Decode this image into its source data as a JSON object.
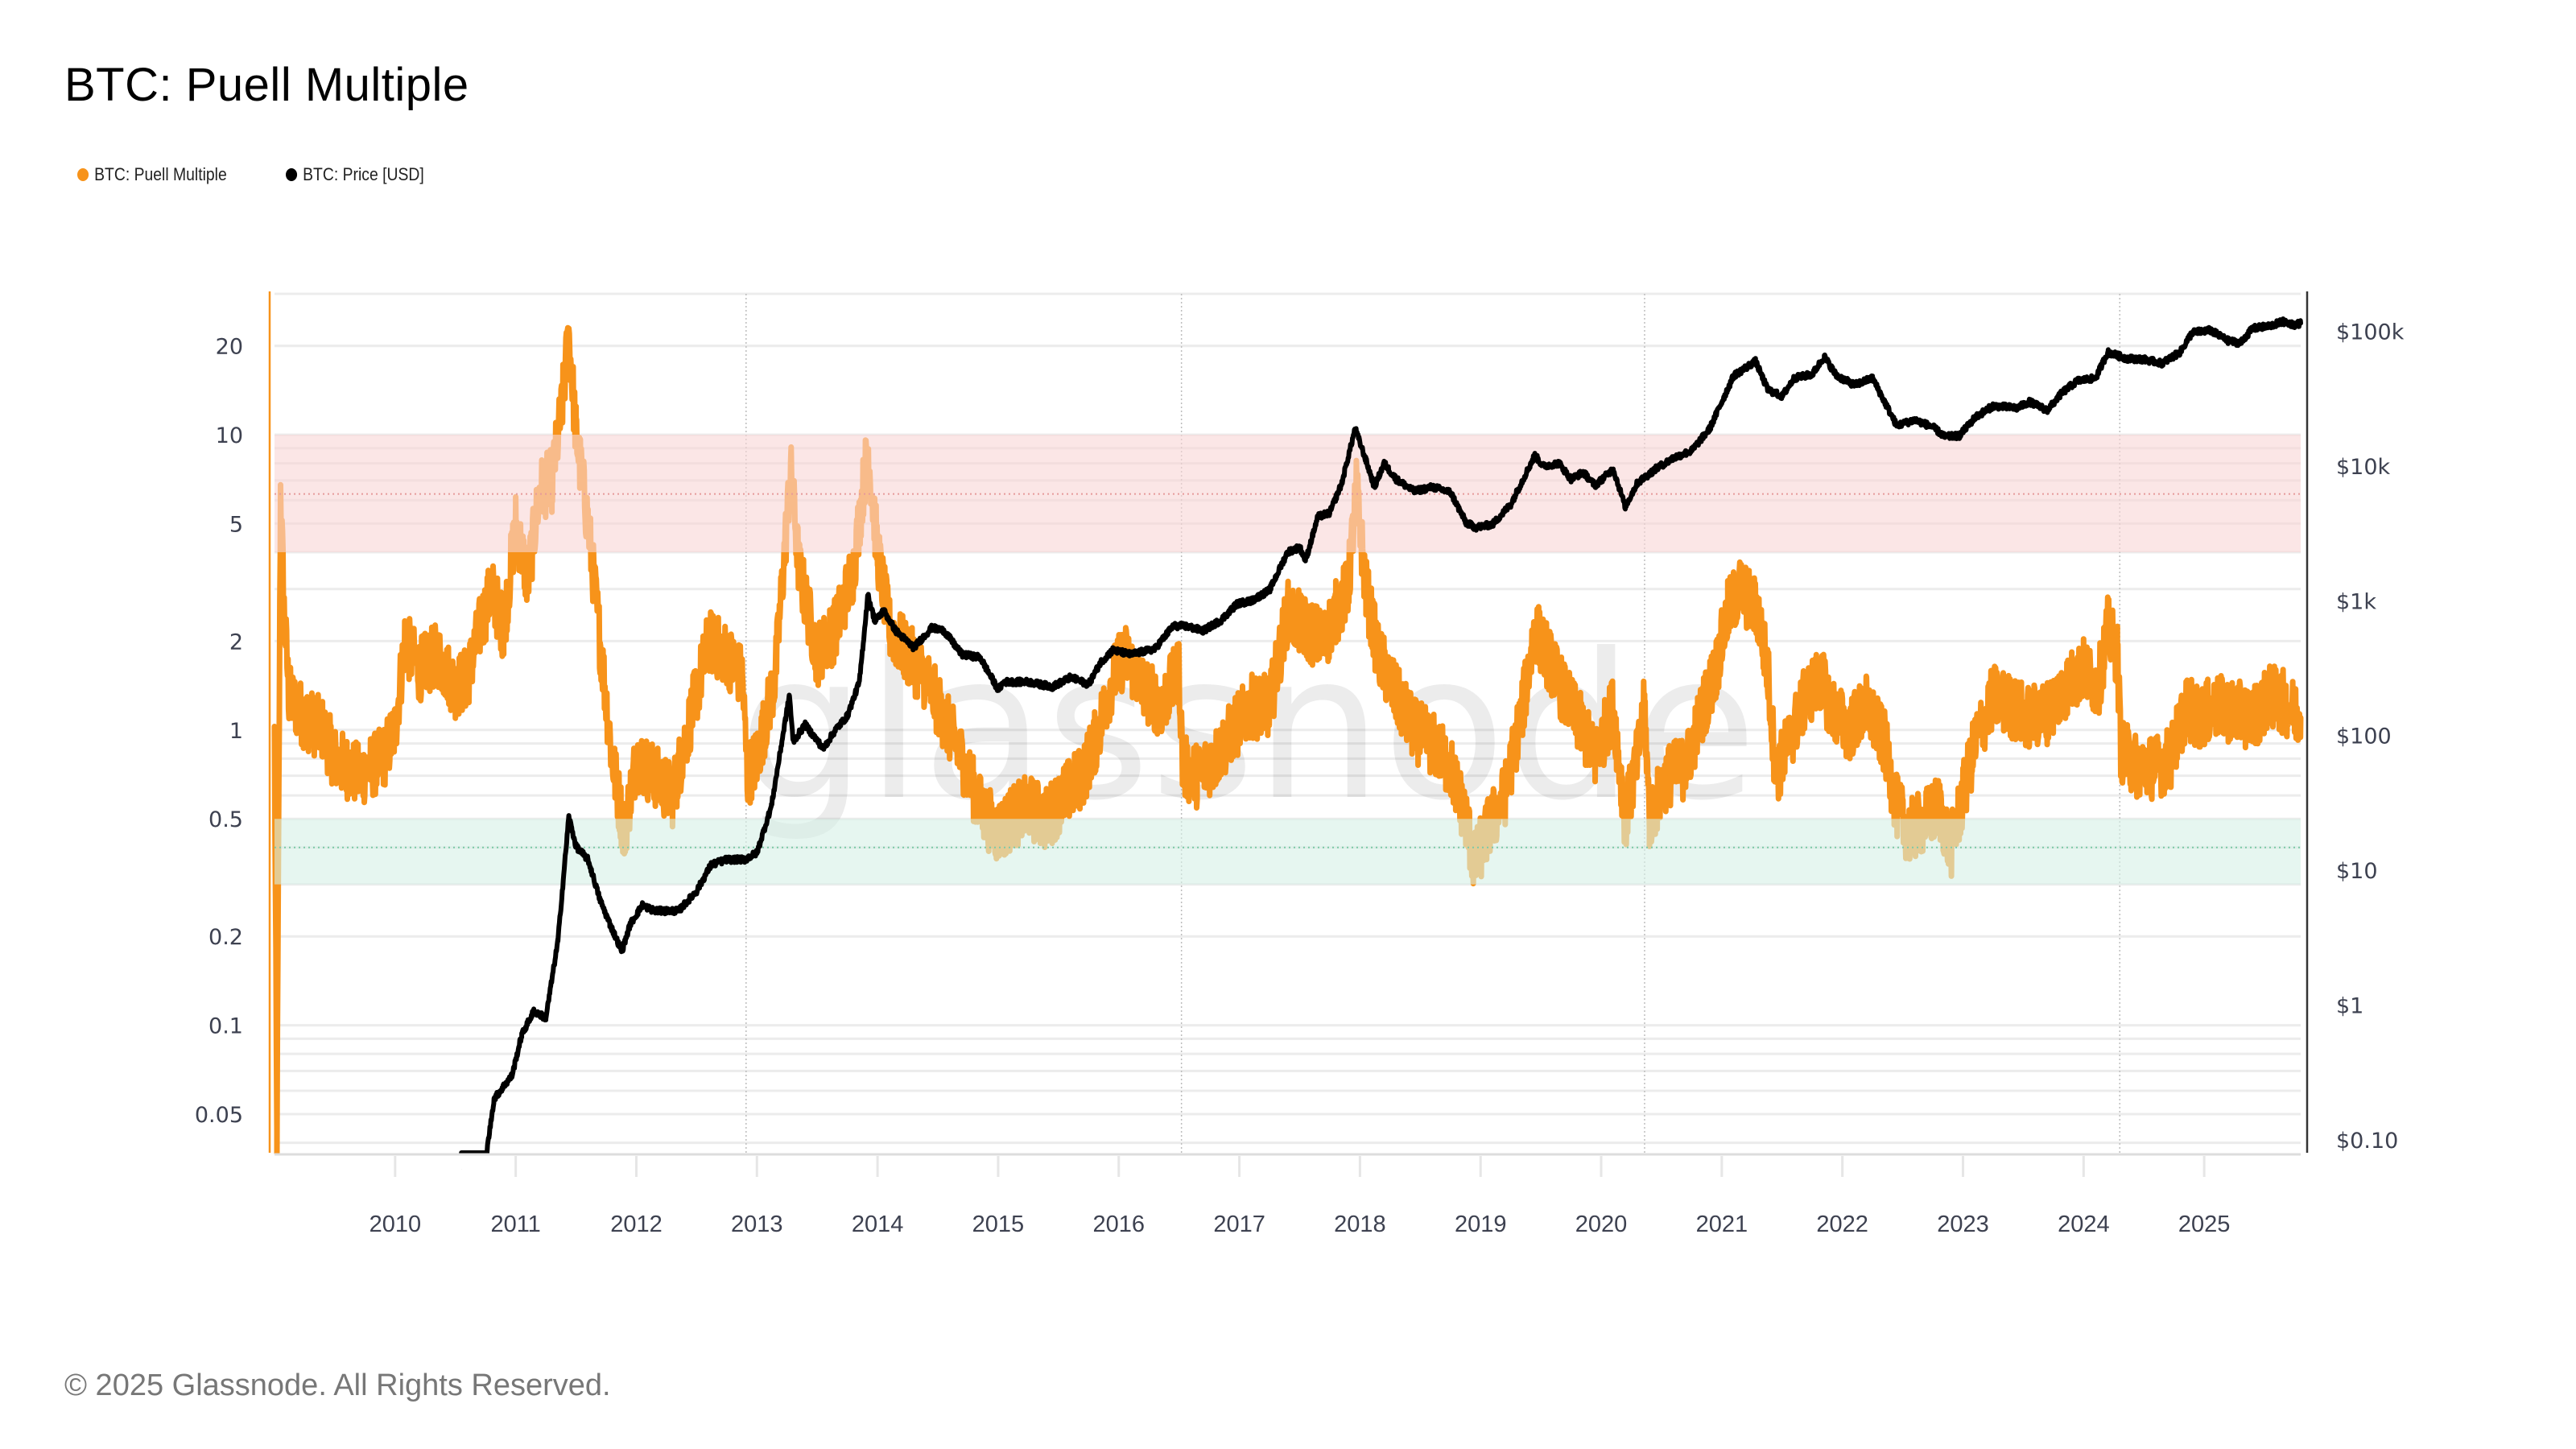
{
  "header": {
    "title": "BTC: Puell Multiple"
  },
  "legend": [
    {
      "label": "BTC: Puell Multiple",
      "color": "#f7931a"
    },
    {
      "label": "BTC: Price [USD]",
      "color": "#000000"
    }
  ],
  "footer": {
    "copyright": "© 2025 Glassnode. All Rights Reserved."
  },
  "watermark": "glassnode",
  "chart_data": {
    "type": "line",
    "title": "BTC: Puell Multiple",
    "xlabel": "",
    "x_axis": {
      "scale": "time",
      "range": [
        2009.0,
        2025.8
      ],
      "tick_labels": [
        "2010",
        "2011",
        "2012",
        "2013",
        "2014",
        "2015",
        "2016",
        "2017",
        "2018",
        "2019",
        "2020",
        "2021",
        "2022",
        "2023",
        "2024",
        "2025"
      ],
      "ticks": [
        2010,
        2011,
        2012,
        2013,
        2014,
        2015,
        2016,
        2017,
        2018,
        2019,
        2020,
        2021,
        2022,
        2023,
        2024,
        2025
      ]
    },
    "y_left": {
      "label": "BTC: Puell Multiple",
      "scale": "log",
      "range": [
        0.037,
        30
      ],
      "ticks": [
        0.05,
        0.1,
        0.2,
        0.5,
        1,
        2,
        5,
        10,
        20
      ],
      "tick_labels": [
        "0.05",
        "0.1",
        "0.2",
        "0.5",
        "1",
        "2",
        "5",
        "10",
        "20"
      ]
    },
    "y_right": {
      "label": "BTC: Price [USD]",
      "scale": "log",
      "range": [
        0.08,
        190000
      ],
      "ticks": [
        0.1,
        1,
        10,
        100,
        1000,
        10000,
        100000
      ],
      "tick_labels": [
        "$0.10",
        "$1",
        "$10",
        "$100",
        "$1k",
        "$10k",
        "$100k"
      ]
    },
    "grid": true,
    "legend_position": "top-left",
    "bands": [
      {
        "name": "overvalued-zone",
        "axis": "left",
        "from": 4,
        "to": 10,
        "color": "#f9d6d6",
        "midline": 6.3
      },
      {
        "name": "undervalued-zone",
        "axis": "left",
        "from": 0.3,
        "to": 0.5,
        "color": "#d5f0e6",
        "midline": 0.4
      }
    ],
    "halving_markers": [
      2012.91,
      2016.52,
      2020.36,
      2024.3
    ],
    "series": [
      {
        "name": "BTC: Puell Multiple",
        "axis": "left",
        "color": "#f7931a",
        "noise": 0.22,
        "points": [
          [
            2009.0,
            0.95
          ],
          [
            2009.02,
            0.04
          ],
          [
            2009.05,
            6.5
          ],
          [
            2009.08,
            2.5
          ],
          [
            2009.12,
            1.3
          ],
          [
            2009.25,
            1.1
          ],
          [
            2009.4,
            1.0
          ],
          [
            2009.5,
            0.8
          ],
          [
            2009.6,
            0.75
          ],
          [
            2009.7,
            0.7
          ],
          [
            2009.8,
            0.75
          ],
          [
            2009.9,
            0.8
          ],
          [
            2010.0,
            1.0
          ],
          [
            2010.08,
            2.0
          ],
          [
            2010.2,
            1.6
          ],
          [
            2010.35,
            1.8
          ],
          [
            2010.5,
            1.4
          ],
          [
            2010.6,
            1.5
          ],
          [
            2010.7,
            2.2
          ],
          [
            2010.8,
            3.0
          ],
          [
            2010.9,
            2.2
          ],
          [
            2011.0,
            5.0
          ],
          [
            2011.1,
            3.2
          ],
          [
            2011.2,
            6.5
          ],
          [
            2011.3,
            7.0
          ],
          [
            2011.38,
            12.0
          ],
          [
            2011.44,
            22.0
          ],
          [
            2011.5,
            10.0
          ],
          [
            2011.6,
            5.0
          ],
          [
            2011.7,
            2.0
          ],
          [
            2011.8,
            0.8
          ],
          [
            2011.9,
            0.45
          ],
          [
            2012.0,
            0.8
          ],
          [
            2012.15,
            0.7
          ],
          [
            2012.3,
            0.6
          ],
          [
            2012.45,
            1.1
          ],
          [
            2012.6,
            2.0
          ],
          [
            2012.75,
            1.8
          ],
          [
            2012.88,
            1.5
          ],
          [
            2012.92,
            0.7
          ],
          [
            2013.0,
            0.8
          ],
          [
            2013.15,
            1.5
          ],
          [
            2013.28,
            7.5
          ],
          [
            2013.35,
            3.5
          ],
          [
            2013.5,
            1.8
          ],
          [
            2013.65,
            2.2
          ],
          [
            2013.8,
            3.5
          ],
          [
            2013.92,
            9.0
          ],
          [
            2014.0,
            4.0
          ],
          [
            2014.1,
            2.2
          ],
          [
            2014.25,
            1.8
          ],
          [
            2014.4,
            1.5
          ],
          [
            2014.55,
            1.1
          ],
          [
            2014.7,
            0.8
          ],
          [
            2014.85,
            0.55
          ],
          [
            2015.0,
            0.45
          ],
          [
            2015.1,
            0.5
          ],
          [
            2015.25,
            0.55
          ],
          [
            2015.4,
            0.5
          ],
          [
            2015.55,
            0.6
          ],
          [
            2015.7,
            0.7
          ],
          [
            2015.8,
            0.9
          ],
          [
            2015.95,
            1.5
          ],
          [
            2016.05,
            1.8
          ],
          [
            2016.2,
            1.4
          ],
          [
            2016.35,
            1.2
          ],
          [
            2016.5,
            1.6
          ],
          [
            2016.53,
            0.75
          ],
          [
            2016.65,
            0.7
          ],
          [
            2016.8,
            0.8
          ],
          [
            2016.95,
            1.0
          ],
          [
            2017.1,
            1.2
          ],
          [
            2017.25,
            1.2
          ],
          [
            2017.4,
            2.5
          ],
          [
            2017.55,
            2.2
          ],
          [
            2017.7,
            2.0
          ],
          [
            2017.8,
            2.5
          ],
          [
            2017.9,
            3.0
          ],
          [
            2017.97,
            6.5
          ],
          [
            2018.05,
            3.0
          ],
          [
            2018.15,
            1.8
          ],
          [
            2018.3,
            1.3
          ],
          [
            2018.45,
            1.0
          ],
          [
            2018.6,
            0.9
          ],
          [
            2018.75,
            0.75
          ],
          [
            2018.88,
            0.5
          ],
          [
            2018.95,
            0.35
          ],
          [
            2019.05,
            0.45
          ],
          [
            2019.2,
            0.6
          ],
          [
            2019.35,
            1.2
          ],
          [
            2019.45,
            2.2
          ],
          [
            2019.55,
            1.8
          ],
          [
            2019.7,
            1.3
          ],
          [
            2019.85,
            1.0
          ],
          [
            2019.95,
            0.8
          ],
          [
            2020.1,
            1.2
          ],
          [
            2020.2,
            0.5
          ],
          [
            2020.3,
            0.8
          ],
          [
            2020.36,
            1.2
          ],
          [
            2020.4,
            0.5
          ],
          [
            2020.55,
            0.7
          ],
          [
            2020.7,
            0.75
          ],
          [
            2020.85,
            1.2
          ],
          [
            2020.95,
            1.6
          ],
          [
            2021.05,
            2.5
          ],
          [
            2021.15,
            3.0
          ],
          [
            2021.3,
            2.5
          ],
          [
            2021.38,
            1.6
          ],
          [
            2021.45,
            0.7
          ],
          [
            2021.55,
            0.9
          ],
          [
            2021.7,
            1.3
          ],
          [
            2021.82,
            1.5
          ],
          [
            2021.9,
            1.2
          ],
          [
            2022.05,
            1.0
          ],
          [
            2022.2,
            1.2
          ],
          [
            2022.35,
            0.9
          ],
          [
            2022.45,
            0.55
          ],
          [
            2022.55,
            0.45
          ],
          [
            2022.7,
            0.5
          ],
          [
            2022.8,
            0.55
          ],
          [
            2022.9,
            0.4
          ],
          [
            2022.98,
            0.55
          ],
          [
            2023.1,
            0.9
          ],
          [
            2023.25,
            1.3
          ],
          [
            2023.4,
            1.2
          ],
          [
            2023.55,
            1.1
          ],
          [
            2023.7,
            1.15
          ],
          [
            2023.85,
            1.4
          ],
          [
            2024.0,
            1.6
          ],
          [
            2024.12,
            1.4
          ],
          [
            2024.2,
            2.2
          ],
          [
            2024.28,
            1.8
          ],
          [
            2024.31,
            0.85
          ],
          [
            2024.45,
            0.75
          ],
          [
            2024.6,
            0.75
          ],
          [
            2024.72,
            0.8
          ],
          [
            2024.85,
            1.2
          ],
          [
            2024.95,
            1.1
          ],
          [
            2025.1,
            1.2
          ],
          [
            2025.25,
            1.15
          ],
          [
            2025.4,
            1.1
          ],
          [
            2025.55,
            1.3
          ],
          [
            2025.65,
            1.25
          ],
          [
            2025.8,
            1.1
          ]
        ]
      },
      {
        "name": "BTC: Price [USD]",
        "axis": "right",
        "color": "#000000",
        "noise": 0.045,
        "points": [
          [
            2010.55,
            0.06
          ],
          [
            2010.6,
            0.07
          ],
          [
            2010.75,
            0.07
          ],
          [
            2010.82,
            0.2
          ],
          [
            2010.9,
            0.25
          ],
          [
            2010.97,
            0.3
          ],
          [
            2011.05,
            0.6
          ],
          [
            2011.15,
            0.9
          ],
          [
            2011.25,
            0.8
          ],
          [
            2011.35,
            3.0
          ],
          [
            2011.44,
            25.0
          ],
          [
            2011.5,
            15.0
          ],
          [
            2011.6,
            12.0
          ],
          [
            2011.7,
            6.0
          ],
          [
            2011.78,
            4.0
          ],
          [
            2011.88,
            2.5
          ],
          [
            2011.95,
            4.0
          ],
          [
            2012.05,
            5.5
          ],
          [
            2012.15,
            5.0
          ],
          [
            2012.35,
            5.0
          ],
          [
            2012.5,
            7.0
          ],
          [
            2012.62,
            11.0
          ],
          [
            2012.75,
            12.0
          ],
          [
            2012.9,
            12.0
          ],
          [
            2013.0,
            13.5
          ],
          [
            2013.12,
            30.0
          ],
          [
            2013.27,
            200.0
          ],
          [
            2013.3,
            90.0
          ],
          [
            2013.4,
            120.0
          ],
          [
            2013.55,
            80.0
          ],
          [
            2013.65,
            110.0
          ],
          [
            2013.75,
            140.0
          ],
          [
            2013.85,
            250.0
          ],
          [
            2013.92,
            1100.0
          ],
          [
            2013.98,
            700.0
          ],
          [
            2014.05,
            850.0
          ],
          [
            2014.15,
            600.0
          ],
          [
            2014.3,
            450.0
          ],
          [
            2014.45,
            630.0
          ],
          [
            2014.55,
            600.0
          ],
          [
            2014.7,
            400.0
          ],
          [
            2014.85,
            380.0
          ],
          [
            2015.0,
            220.0
          ],
          [
            2015.05,
            250.0
          ],
          [
            2015.25,
            250.0
          ],
          [
            2015.45,
            230.0
          ],
          [
            2015.6,
            270.0
          ],
          [
            2015.75,
            240.0
          ],
          [
            2015.85,
            350.0
          ],
          [
            2015.95,
            430.0
          ],
          [
            2016.1,
            400.0
          ],
          [
            2016.3,
            440.0
          ],
          [
            2016.45,
            650.0
          ],
          [
            2016.55,
            650.0
          ],
          [
            2016.7,
            600.0
          ],
          [
            2016.85,
            720.0
          ],
          [
            2016.98,
            950.0
          ],
          [
            2017.1,
            1000.0
          ],
          [
            2017.25,
            1200.0
          ],
          [
            2017.4,
            2300.0
          ],
          [
            2017.5,
            2500.0
          ],
          [
            2017.55,
            2000.0
          ],
          [
            2017.65,
            4200.0
          ],
          [
            2017.75,
            4500.0
          ],
          [
            2017.85,
            7500.0
          ],
          [
            2017.96,
            19000.0
          ],
          [
            2018.05,
            11000.0
          ],
          [
            2018.12,
            7000.0
          ],
          [
            2018.2,
            10500.0
          ],
          [
            2018.3,
            8000.0
          ],
          [
            2018.45,
            6500.0
          ],
          [
            2018.6,
            7000.0
          ],
          [
            2018.75,
            6400.0
          ],
          [
            2018.88,
            3800.0
          ],
          [
            2018.96,
            3500.0
          ],
          [
            2019.1,
            3700.0
          ],
          [
            2019.25,
            5200.0
          ],
          [
            2019.45,
            12000.0
          ],
          [
            2019.52,
            10000.0
          ],
          [
            2019.65,
            10500.0
          ],
          [
            2019.75,
            8000.0
          ],
          [
            2019.85,
            9000.0
          ],
          [
            2019.95,
            7200.0
          ],
          [
            2020.1,
            9500.0
          ],
          [
            2020.2,
            5000.0
          ],
          [
            2020.3,
            7500.0
          ],
          [
            2020.45,
            9500.0
          ],
          [
            2020.6,
            11500.0
          ],
          [
            2020.75,
            13000.0
          ],
          [
            2020.9,
            19000.0
          ],
          [
            2021.0,
            30000.0
          ],
          [
            2021.1,
            47000.0
          ],
          [
            2021.28,
            60000.0
          ],
          [
            2021.38,
            37000.0
          ],
          [
            2021.5,
            33000.0
          ],
          [
            2021.6,
            45000.0
          ],
          [
            2021.75,
            48000.0
          ],
          [
            2021.85,
            65000.0
          ],
          [
            2021.95,
            47000.0
          ],
          [
            2022.1,
            40000.0
          ],
          [
            2022.25,
            45000.0
          ],
          [
            2022.35,
            30000.0
          ],
          [
            2022.45,
            20000.0
          ],
          [
            2022.6,
            22000.0
          ],
          [
            2022.75,
            19500.0
          ],
          [
            2022.85,
            16500.0
          ],
          [
            2022.97,
            16800.0
          ],
          [
            2023.1,
            23000.0
          ],
          [
            2023.25,
            28000.0
          ],
          [
            2023.45,
            27000.0
          ],
          [
            2023.55,
            30000.0
          ],
          [
            2023.7,
            26000.0
          ],
          [
            2023.82,
            35000.0
          ],
          [
            2023.95,
            43000.0
          ],
          [
            2024.1,
            45000.0
          ],
          [
            2024.2,
            70000.0
          ],
          [
            2024.35,
            63000.0
          ],
          [
            2024.5,
            62000.0
          ],
          [
            2024.65,
            58000.0
          ],
          [
            2024.8,
            70000.0
          ],
          [
            2024.9,
            98000.0
          ],
          [
            2025.05,
            102000.0
          ],
          [
            2025.2,
            85000.0
          ],
          [
            2025.3,
            82000.0
          ],
          [
            2025.4,
            105000.0
          ],
          [
            2025.55,
            110000.0
          ],
          [
            2025.65,
            118000.0
          ],
          [
            2025.75,
            112000.0
          ],
          [
            2025.8,
            115000.0
          ]
        ]
      }
    ]
  }
}
